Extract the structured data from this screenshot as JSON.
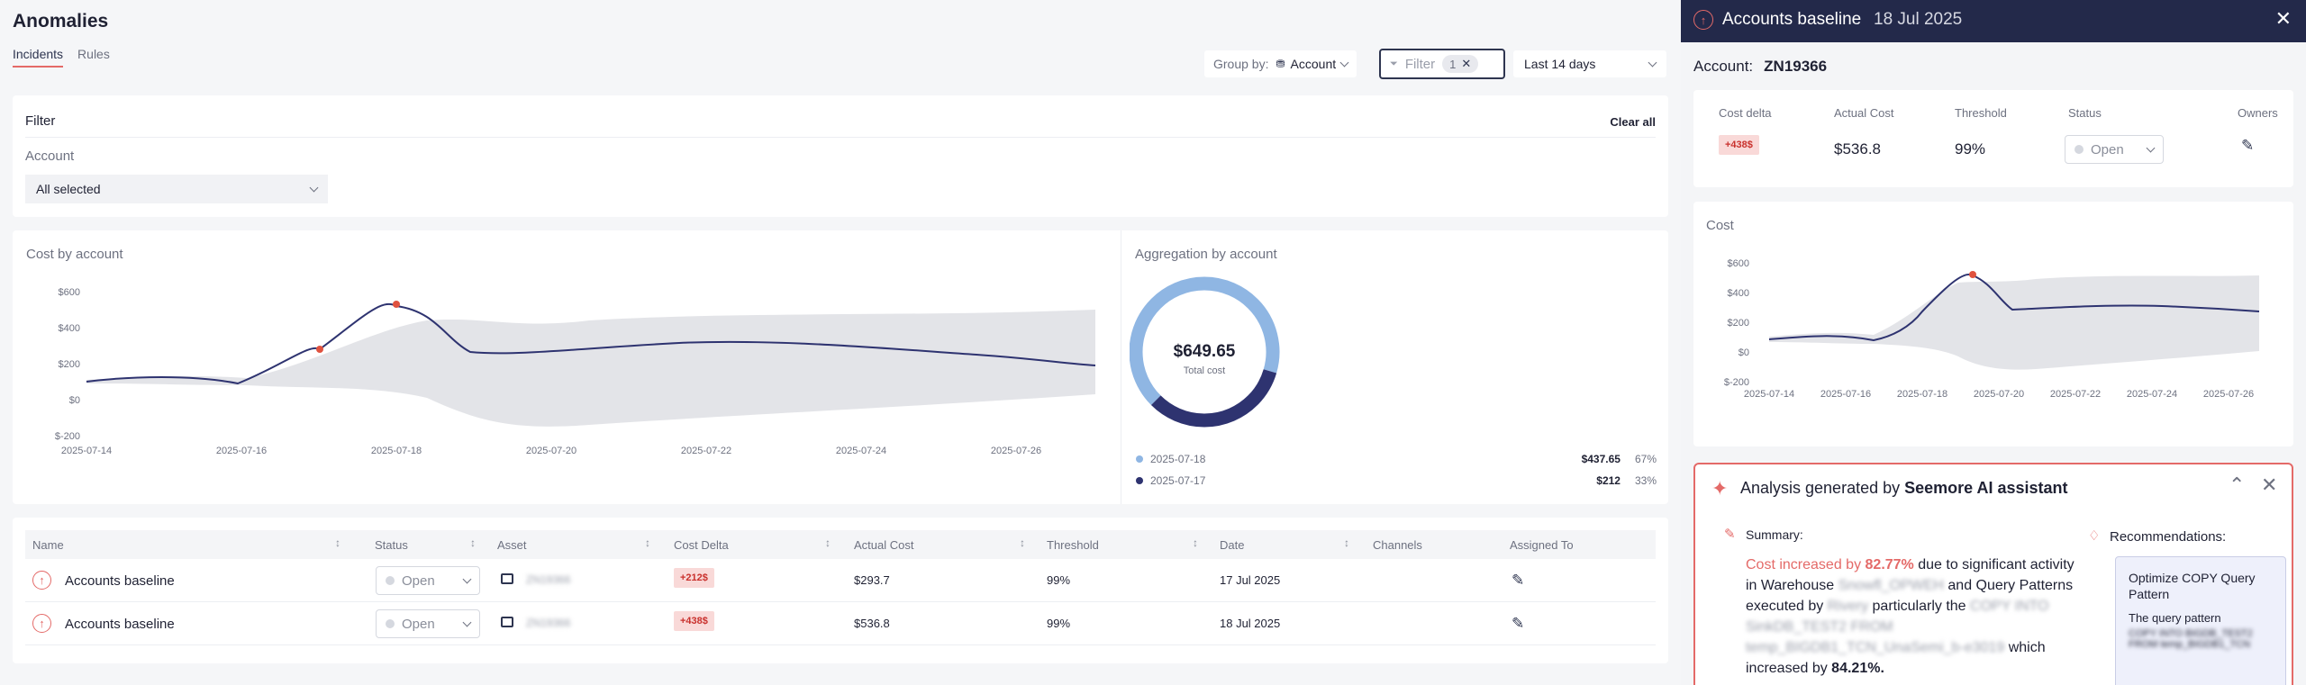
{
  "page": {
    "title": "Anomalies",
    "tabs": [
      "Incidents",
      "Rules"
    ]
  },
  "toolbar": {
    "groupby_label": "Group by:",
    "groupby_value": "Account",
    "filter_placeholder": "Filter",
    "filter_count": "1",
    "range": "Last 14 days"
  },
  "filter": {
    "title": "Filter",
    "clear": "Clear all",
    "account_label": "Account",
    "account_value": "All selected"
  },
  "cost_chart": {
    "title": "Cost by account",
    "y_ticks": [
      "$600",
      "$400",
      "$200",
      "$0",
      "$-200"
    ],
    "x_ticks": [
      "2025-07-14",
      "2025-07-16",
      "2025-07-18",
      "2025-07-20",
      "2025-07-22",
      "2025-07-24",
      "2025-07-26"
    ]
  },
  "aggregation": {
    "title": "Aggregation by account",
    "total": "$649.65",
    "total_label": "Total cost",
    "legend": [
      {
        "label": "2025-07-18",
        "value": "$437.65",
        "pct": "67%",
        "color": "#8fb6e3"
      },
      {
        "label": "2025-07-17",
        "value": "$212",
        "pct": "33%",
        "color": "#2e3370"
      }
    ]
  },
  "table": {
    "headers": [
      "Name",
      "Status",
      "Asset",
      "Cost Delta",
      "Actual Cost",
      "Threshold",
      "Date",
      "Channels",
      "Assigned To"
    ],
    "rows": [
      {
        "name": "Accounts baseline",
        "status": "Open",
        "asset": "ZN19366",
        "delta": "+212$",
        "cost": "$293.7",
        "threshold": "99%",
        "date": "17 Jul 2025"
      },
      {
        "name": "Accounts baseline",
        "status": "Open",
        "asset": "ZN19366",
        "delta": "+438$",
        "cost": "$536.8",
        "threshold": "99%",
        "date": "18 Jul 2025"
      }
    ]
  },
  "panel": {
    "title": "Accounts baseline",
    "date": "18 Jul 2025",
    "account_label": "Account:",
    "account_value": "ZN19366",
    "summary": {
      "headers": [
        "Cost delta",
        "Actual Cost",
        "Threshold",
        "Status",
        "Owners"
      ],
      "delta": "+438$",
      "actual": "$536.8",
      "threshold": "99%",
      "status": "Open"
    },
    "cost_title": "Cost",
    "cost_y_ticks": [
      "$600",
      "$400",
      "$200",
      "$0",
      "$-200"
    ],
    "cost_x_ticks": [
      "2025-07-14",
      "2025-07-16",
      "2025-07-18",
      "2025-07-20",
      "2025-07-22",
      "2025-07-24",
      "2025-07-26"
    ],
    "ai": {
      "title_prefix": "Analysis generated by",
      "title_brand": "Seemore AI assistant",
      "summary_label": "Summary:",
      "rec_label": "Recommendations:",
      "s1": "Cost increased by",
      "s1_val": "82.77%",
      "s2": "due to significant activity in Warehouse",
      "wh": "Snowfl_OPWEH",
      "s3": "and Query Patterns executed by",
      "usr": "Rivery",
      "s4": "particularly the",
      "blurred": "COPY INTO SinkDB_TEST2 FROM temp_BIGDB1_TCN_UnaSemi_b-e3019",
      "s5": "which increased by",
      "s5_val": "84.21%.",
      "rec_title": "Optimize COPY Query Pattern",
      "rec_desc": "The query pattern",
      "rec_blur": "COPY INTO BIGDB_TEST2 FROM temp_BIGDB1_TCN"
    }
  }
}
